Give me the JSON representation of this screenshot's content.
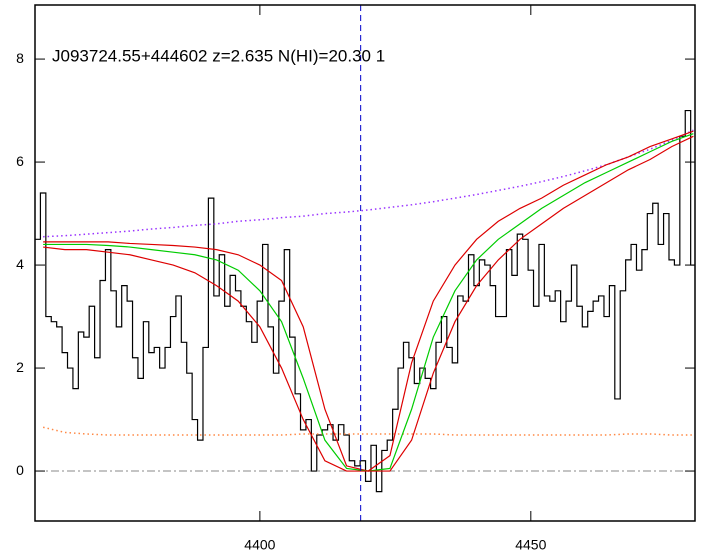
{
  "chart_data": {
    "type": "line",
    "annotation": "J093724.55+444602 z=2.635 N(HI)=20.30 1",
    "xlim": [
      4358.5,
      4480.3
    ],
    "ylim": [
      -0.97,
      9.05
    ],
    "xticks": [
      4400,
      4450
    ],
    "yticks": [
      0,
      2,
      4,
      6,
      8
    ],
    "vline": {
      "x": 4418.6,
      "color": "#0000cc"
    },
    "hline": {
      "y": 0,
      "color": "#888888"
    },
    "series": [
      {
        "color": "#000000",
        "style": "step",
        "x": [
          4359,
          4360,
          4361,
          4362,
          4363,
          4364,
          4365,
          4366,
          4367,
          4368,
          4369,
          4370,
          4371,
          4372,
          4373,
          4374,
          4375,
          4376,
          4377,
          4378,
          4379,
          4380,
          4381,
          4382,
          4383,
          4384,
          4385,
          4386,
          4387,
          4388,
          4389,
          4390,
          4391,
          4392,
          4393,
          4394,
          4395,
          4396,
          4397,
          4398,
          4399,
          4400,
          4401,
          4402,
          4403,
          4404,
          4405,
          4406,
          4407,
          4408,
          4409,
          4410,
          4411,
          4412,
          4413,
          4414,
          4415,
          4416,
          4417,
          4418,
          4419,
          4420,
          4421,
          4422,
          4423,
          4424,
          4425,
          4426,
          4427,
          4428,
          4429,
          4430,
          4431,
          4432,
          4433,
          4434,
          4435,
          4436,
          4437,
          4438,
          4439,
          4440,
          4441,
          4442,
          4443,
          4444,
          4445,
          4446,
          4447,
          4448,
          4449,
          4450,
          4451,
          4452,
          4453,
          4454,
          4455,
          4456,
          4457,
          4458,
          4459,
          4460,
          4461,
          4462,
          4463,
          4464,
          4465,
          4466,
          4467,
          4468,
          4469,
          4470,
          4471,
          4472,
          4473,
          4474,
          4475,
          4476,
          4477,
          4478,
          4479,
          4480
        ],
        "values": [
          4.5,
          5.4,
          3.0,
          2.9,
          2.8,
          2.3,
          2.0,
          1.6,
          2.7,
          2.6,
          3.2,
          2.2,
          3.7,
          4.3,
          3.5,
          2.8,
          3.6,
          3.3,
          2.2,
          1.8,
          2.9,
          2.3,
          2.4,
          2.0,
          2.4,
          3.0,
          3.4,
          2.5,
          1.9,
          1.0,
          0.6,
          2.4,
          5.3,
          3.4,
          4.2,
          3.2,
          3.8,
          3.5,
          3.2,
          2.9,
          2.5,
          3.3,
          4.4,
          2.8,
          1.9,
          3.3,
          4.3,
          2.6,
          1.5,
          0.8,
          1.0,
          0.0,
          0.7,
          0.8,
          0.9,
          0.6,
          0.9,
          0.7,
          0.2,
          0.1,
          0.2,
          -0.2,
          0.5,
          -0.4,
          0.4,
          0.6,
          1.2,
          2.0,
          2.5,
          2.2,
          1.7,
          2.0,
          1.8,
          1.6,
          2.5,
          3.0,
          2.4,
          2.1,
          3.4,
          3.3,
          4.2,
          3.6,
          4.1,
          4.0,
          3.6,
          3.0,
          3.0,
          4.3,
          3.8,
          4.6,
          4.5,
          3.9,
          3.2,
          4.4,
          3.4,
          3.3,
          3.5,
          2.9,
          3.3,
          4.0,
          3.2,
          2.8,
          3.1,
          3.3,
          3.4,
          3.0,
          3.6,
          1.4,
          3.5,
          4.1,
          4.4,
          3.9,
          4.3,
          5.0,
          5.2,
          4.4,
          5.0,
          4.1,
          4.0,
          6.5,
          7.0,
          4.0
        ]
      },
      {
        "color": "#9933ff",
        "style": "dotted",
        "x": [
          4360,
          4364,
          4368,
          4372,
          4376,
          4380,
          4384,
          4388,
          4392,
          4396,
          4400,
          4404,
          4408,
          4412,
          4416,
          4420,
          4424,
          4428,
          4432,
          4436,
          4440,
          4444,
          4448,
          4452,
          4456,
          4460,
          4464,
          4468,
          4472,
          4476,
          4480
        ],
        "values": [
          4.55,
          4.57,
          4.6,
          4.63,
          4.66,
          4.7,
          4.73,
          4.77,
          4.8,
          4.85,
          4.88,
          4.92,
          4.95,
          5.0,
          5.03,
          5.07,
          5.12,
          5.17,
          5.23,
          5.3,
          5.37,
          5.45,
          5.53,
          5.62,
          5.72,
          5.83,
          5.95,
          6.1,
          6.25,
          6.42,
          6.62
        ]
      },
      {
        "color": "#ff8844",
        "style": "dotted",
        "x": [
          4360,
          4364,
          4368,
          4372,
          4376,
          4380,
          4384,
          4388,
          4392,
          4396,
          4400,
          4404,
          4408,
          4412,
          4416,
          4420,
          4424,
          4428,
          4432,
          4436,
          4440,
          4444,
          4448,
          4452,
          4456,
          4460,
          4464,
          4468,
          4472,
          4476,
          4480
        ],
        "values": [
          0.85,
          0.75,
          0.72,
          0.7,
          0.7,
          0.7,
          0.7,
          0.7,
          0.7,
          0.7,
          0.7,
          0.7,
          0.72,
          0.72,
          0.72,
          0.72,
          0.72,
          0.72,
          0.72,
          0.7,
          0.7,
          0.7,
          0.7,
          0.7,
          0.7,
          0.7,
          0.7,
          0.72,
          0.72,
          0.7,
          0.7
        ]
      },
      {
        "color": "#dd0000",
        "style": "solid",
        "x": [
          4360,
          4364,
          4368,
          4372,
          4376,
          4380,
          4384,
          4388,
          4392,
          4396,
          4400,
          4404,
          4408,
          4412,
          4416,
          4420,
          4424,
          4428,
          4432,
          4436,
          4440,
          4444,
          4448,
          4452,
          4456,
          4460,
          4464,
          4468,
          4472,
          4476,
          4480
        ],
        "values": [
          4.45,
          4.45,
          4.45,
          4.45,
          4.42,
          4.4,
          4.38,
          4.35,
          4.3,
          4.2,
          4.0,
          3.7,
          2.8,
          1.2,
          0.1,
          0.0,
          0.3,
          2.1,
          3.3,
          4.0,
          4.5,
          4.85,
          5.1,
          5.3,
          5.55,
          5.75,
          5.95,
          6.1,
          6.3,
          6.45,
          6.6
        ]
      },
      {
        "color": "#00cc00",
        "style": "solid",
        "x": [
          4360,
          4364,
          4368,
          4372,
          4376,
          4380,
          4384,
          4388,
          4392,
          4396,
          4400,
          4404,
          4408,
          4412,
          4416,
          4420,
          4424,
          4428,
          4432,
          4436,
          4440,
          4444,
          4448,
          4452,
          4456,
          4460,
          4464,
          4468,
          4472,
          4476,
          4480
        ],
        "values": [
          4.4,
          4.4,
          4.4,
          4.38,
          4.35,
          4.3,
          4.25,
          4.2,
          4.1,
          3.9,
          3.5,
          2.9,
          1.8,
          0.6,
          0.05,
          0.0,
          0.05,
          1.2,
          2.6,
          3.5,
          4.1,
          4.5,
          4.8,
          5.1,
          5.35,
          5.6,
          5.8,
          6.0,
          6.2,
          6.4,
          6.55
        ]
      },
      {
        "color": "#dd0000",
        "style": "solid",
        "x": [
          4360,
          4364,
          4368,
          4372,
          4376,
          4380,
          4384,
          4388,
          4392,
          4396,
          4400,
          4404,
          4408,
          4412,
          4416,
          4420,
          4424,
          4428,
          4432,
          4436,
          4440,
          4444,
          4448,
          4452,
          4456,
          4460,
          4464,
          4468,
          4472,
          4476,
          4480
        ],
        "values": [
          4.35,
          4.3,
          4.3,
          4.25,
          4.2,
          4.1,
          4.0,
          3.85,
          3.6,
          3.3,
          2.8,
          2.0,
          1.0,
          0.2,
          0.0,
          0.0,
          0.0,
          0.6,
          1.9,
          2.9,
          3.6,
          4.1,
          4.5,
          4.8,
          5.1,
          5.35,
          5.6,
          5.85,
          6.05,
          6.3,
          6.5
        ]
      }
    ]
  }
}
